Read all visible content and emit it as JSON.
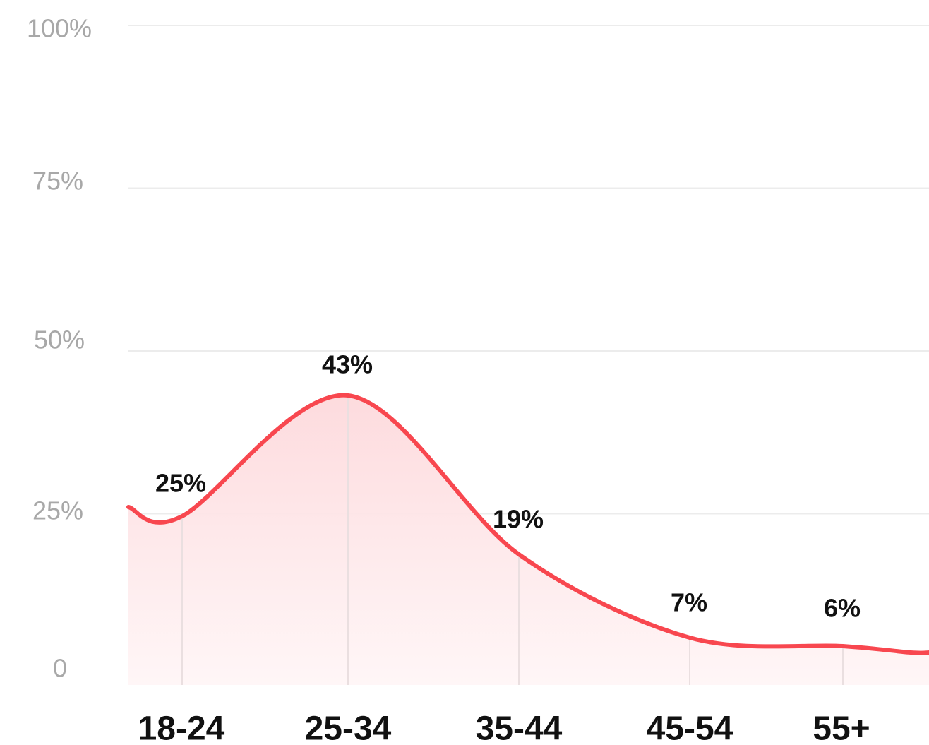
{
  "chart_data": {
    "type": "area",
    "categories": [
      "18-24",
      "25-34",
      "35-44",
      "45-54",
      "55+"
    ],
    "series": [
      {
        "values": [
          25,
          43,
          19,
          7,
          6
        ],
        "data_labels": [
          "25%",
          "43%",
          "19%",
          "7%",
          "6%"
        ]
      }
    ],
    "y_ticks": [
      {
        "value": 0,
        "label": "0"
      },
      {
        "value": 25,
        "label": "25%"
      },
      {
        "value": 50,
        "label": "50%"
      },
      {
        "value": 75,
        "label": "75%"
      },
      {
        "value": 100,
        "label": "100%"
      }
    ],
    "ylim": [
      0,
      100
    ],
    "grid": true,
    "colors": {
      "line": "#f8474f",
      "fill_top": "#fdd9dc",
      "fill_bottom": "#fff5f6",
      "grid": "#ececec",
      "category_line": "#eadfe0"
    }
  }
}
